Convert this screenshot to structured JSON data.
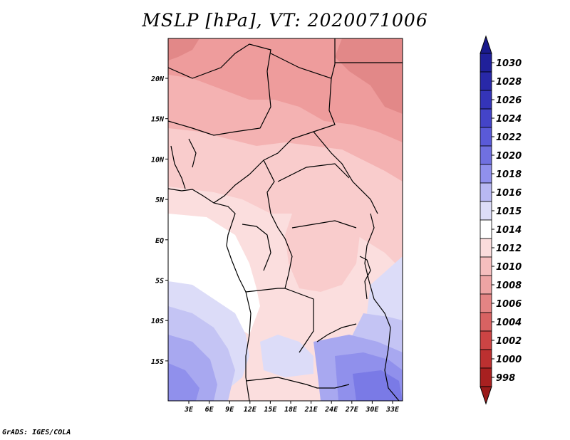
{
  "title": "MSLP [hPa], VT: 2020071006",
  "credit": "GrADS: IGES/COLA",
  "x_ticks": [
    "3E",
    "6E",
    "9E",
    "12E",
    "15E",
    "18E",
    "21E",
    "24E",
    "27E",
    "30E",
    "33E"
  ],
  "y_ticks": [
    "20N",
    "15N",
    "10N",
    "5N",
    "EQ",
    "5S",
    "10S",
    "15S"
  ],
  "colorbar": {
    "levels": [
      {
        "label": "1030",
        "color": "#20209a"
      },
      {
        "label": "1028",
        "color": "#2828a8"
      },
      {
        "label": "1026",
        "color": "#3434b8"
      },
      {
        "label": "1024",
        "color": "#4444c8"
      },
      {
        "label": "1022",
        "color": "#5a5ad8"
      },
      {
        "label": "1020",
        "color": "#7070e0"
      },
      {
        "label": "1018",
        "color": "#9090ec"
      },
      {
        "label": "1016",
        "color": "#b8b8f2"
      },
      {
        "label": "1015",
        "color": "#dcdcf8"
      },
      {
        "label": "1014",
        "color": "#ffffff"
      },
      {
        "label": "1012",
        "color": "#fbdcdc"
      },
      {
        "label": "1010",
        "color": "#f6bebe"
      },
      {
        "label": "1008",
        "color": "#eea4a4"
      },
      {
        "label": "1006",
        "color": "#e48484"
      },
      {
        "label": "1004",
        "color": "#d86262"
      },
      {
        "label": "1002",
        "color": "#cc4444"
      },
      {
        "label": "1000",
        "color": "#bc3030"
      },
      {
        "label": "998",
        "color": "#a82020"
      }
    ],
    "top_cap_color": "#1a1a8c",
    "bottom_cap_color": "#9a1a1a"
  },
  "field_colors": {
    "deep_red": "#e28888",
    "red": "#ee9c9c",
    "mid_red": "#f4b2b2",
    "light_red": "#f9cccc",
    "pale_red": "#fbdede",
    "white": "#ffffff",
    "pale_blue": "#dcdcf8",
    "light_blue": "#c4c4f4",
    "blue": "#a8a8f0",
    "mid_blue": "#9090ec",
    "deep_blue": "#7a7ae6"
  }
}
